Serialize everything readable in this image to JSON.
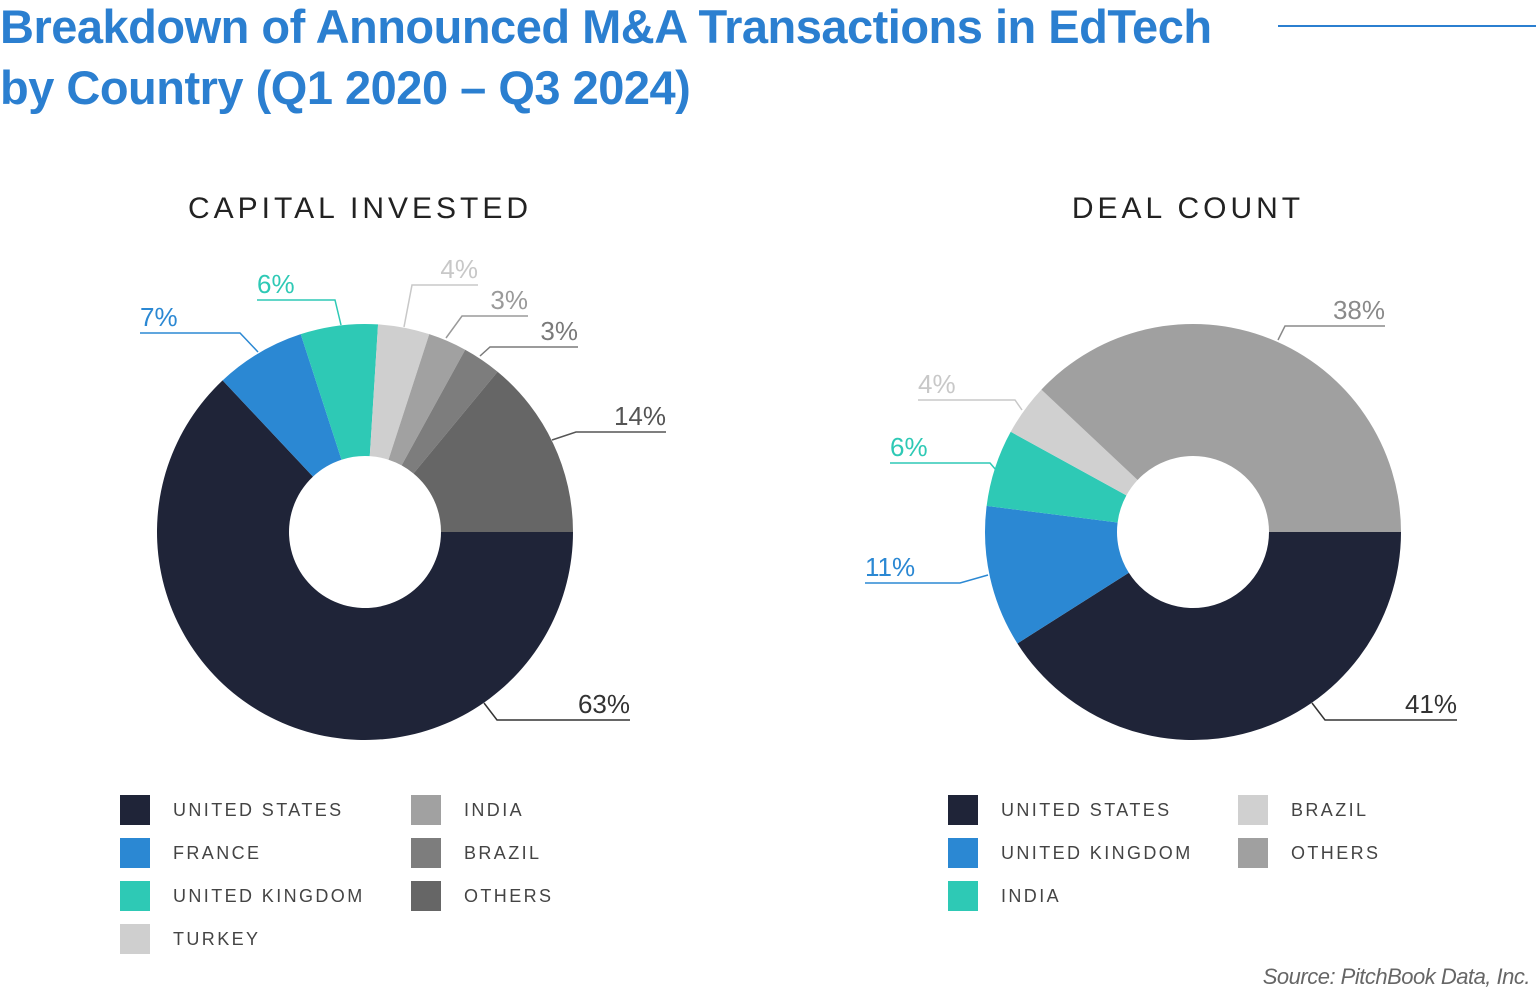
{
  "title_lines": [
    "Breakdown of Announced M&A Transactions in EdTech",
    "by Country (Q1 2020 – Q3 2024)"
  ],
  "source": "Source: PitchBook Data, Inc.",
  "chart_data": [
    {
      "type": "pie",
      "subtype": "donut",
      "title": "CAPITAL INVESTED",
      "categories": [
        "UNITED STATES",
        "FRANCE",
        "UNITED KINGDOM",
        "TURKEY",
        "INDIA",
        "BRAZIL",
        "OTHERS"
      ],
      "values": [
        63,
        7,
        6,
        4,
        3,
        3,
        14
      ],
      "labels": [
        "63%",
        "7%",
        "6%",
        "4%",
        "3%",
        "3%",
        "14%"
      ],
      "colors": [
        "#1f2438",
        "#2b88d3",
        "#2ec9b5",
        "#cfcfcf",
        "#a1a1a1",
        "#7d7d7d",
        "#666666"
      ],
      "label_colors": [
        "#333333",
        "#2b88d3",
        "#2ec9b5",
        "#c8c8c8",
        "#9a9a9a",
        "#7a7a7a",
        "#555555"
      ],
      "start": "3 o'clock, clockwise",
      "legend_position": "bottom"
    },
    {
      "type": "pie",
      "subtype": "donut",
      "title": "DEAL COUNT",
      "categories": [
        "UNITED STATES",
        "UNITED KINGDOM",
        "INDIA",
        "BRAZIL",
        "OTHERS"
      ],
      "values": [
        41,
        11,
        6,
        4,
        38
      ],
      "labels": [
        "41%",
        "11%",
        "6%",
        "4%",
        "38%"
      ],
      "colors": [
        "#1f2438",
        "#2b88d3",
        "#2ec9b5",
        "#d0d0d0",
        "#a0a0a0"
      ],
      "label_colors": [
        "#333333",
        "#2b88d3",
        "#2ec9b5",
        "#c8c8c8",
        "#8a8a8a"
      ],
      "start": "3 o'clock, clockwise",
      "legend_position": "bottom"
    }
  ]
}
